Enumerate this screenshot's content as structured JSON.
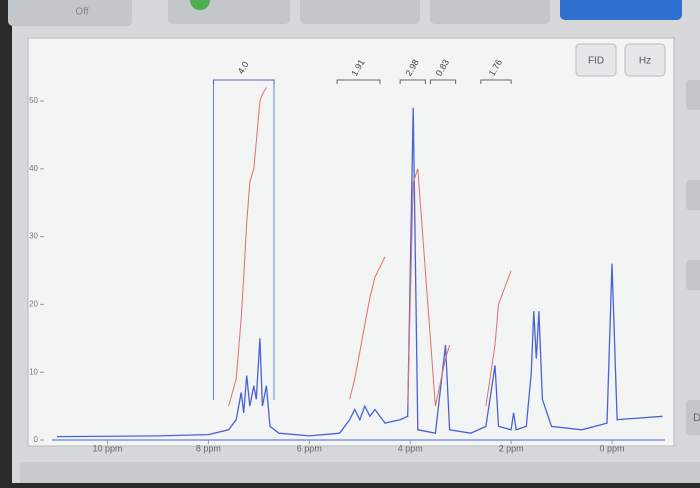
{
  "toolbar": {
    "buttons": [
      "Off"
    ]
  },
  "side_buttons": [
    "D"
  ],
  "chart_data": {
    "type": "line",
    "buttons": [
      "FID",
      "Hz"
    ],
    "x": [
      11.0,
      9.0,
      8.0,
      7.6,
      7.45,
      7.35,
      7.3,
      7.24,
      7.18,
      7.1,
      7.05,
      6.98,
      6.93,
      6.85,
      6.78,
      6.6,
      6.0,
      5.4,
      5.2,
      5.1,
      5.0,
      4.9,
      4.8,
      4.7,
      4.5,
      4.2,
      4.05,
      3.94,
      3.85,
      3.5,
      3.3,
      3.22,
      2.8,
      2.5,
      2.32,
      2.25,
      2.0,
      1.95,
      1.9,
      1.7,
      1.6,
      1.55,
      1.5,
      1.45,
      1.38,
      1.2,
      0.6,
      0.1,
      0.0,
      -0.1,
      -1.0
    ],
    "series": [
      {
        "color": "#4a62d8",
        "values": [
          0.5,
          0.6,
          0.8,
          1.5,
          3,
          7,
          4,
          9.5,
          5,
          8,
          6,
          15,
          5,
          8,
          2,
          1,
          0.6,
          1,
          3,
          4.5,
          3,
          5,
          3.5,
          4.5,
          2.5,
          3,
          3.5,
          49,
          1.5,
          1,
          14,
          1.5,
          1,
          2,
          11,
          2,
          1.5,
          4,
          1.5,
          2,
          10,
          19,
          12,
          19,
          6,
          2,
          1.5,
          2.5,
          26,
          3,
          3.5
        ]
      },
      {
        "color": "#e07070",
        "values": [
          null,
          null,
          null,
          5,
          9,
          18,
          24,
          32,
          38,
          40,
          44,
          50,
          51,
          52,
          null,
          null,
          null,
          null,
          6,
          9,
          13,
          17,
          21,
          24,
          27,
          null,
          5,
          38,
          40,
          5,
          12,
          14,
          null,
          5,
          14,
          20,
          25,
          null,
          null,
          null,
          null,
          null,
          null,
          null,
          null,
          null,
          null,
          null,
          null,
          null,
          null
        ]
      }
    ],
    "annotations": [
      {
        "label": "4.0",
        "range": [
          7.9,
          6.7
        ]
      },
      {
        "label": "1.91",
        "range": [
          5.45,
          4.6
        ]
      },
      {
        "label": "2.98",
        "range": [
          4.2,
          3.7
        ]
      },
      {
        "label": "0.83",
        "range": [
          3.6,
          3.1
        ]
      },
      {
        "label": "1.76",
        "range": [
          2.6,
          2.0
        ]
      }
    ],
    "xlim": [
      11.1,
      -1.05
    ],
    "xticks": [
      {
        "value": 10,
        "label": "10 ppm"
      },
      {
        "value": 8,
        "label": "8 ppm"
      },
      {
        "value": 6,
        "label": "6 ppm"
      },
      {
        "value": 4,
        "label": "4 ppm"
      },
      {
        "value": 2,
        "label": "2 ppm"
      },
      {
        "value": 0,
        "label": "0 ppm"
      }
    ],
    "ylim": [
      0,
      59
    ],
    "yticks": [
      0,
      10,
      20,
      30,
      40,
      50
    ]
  }
}
